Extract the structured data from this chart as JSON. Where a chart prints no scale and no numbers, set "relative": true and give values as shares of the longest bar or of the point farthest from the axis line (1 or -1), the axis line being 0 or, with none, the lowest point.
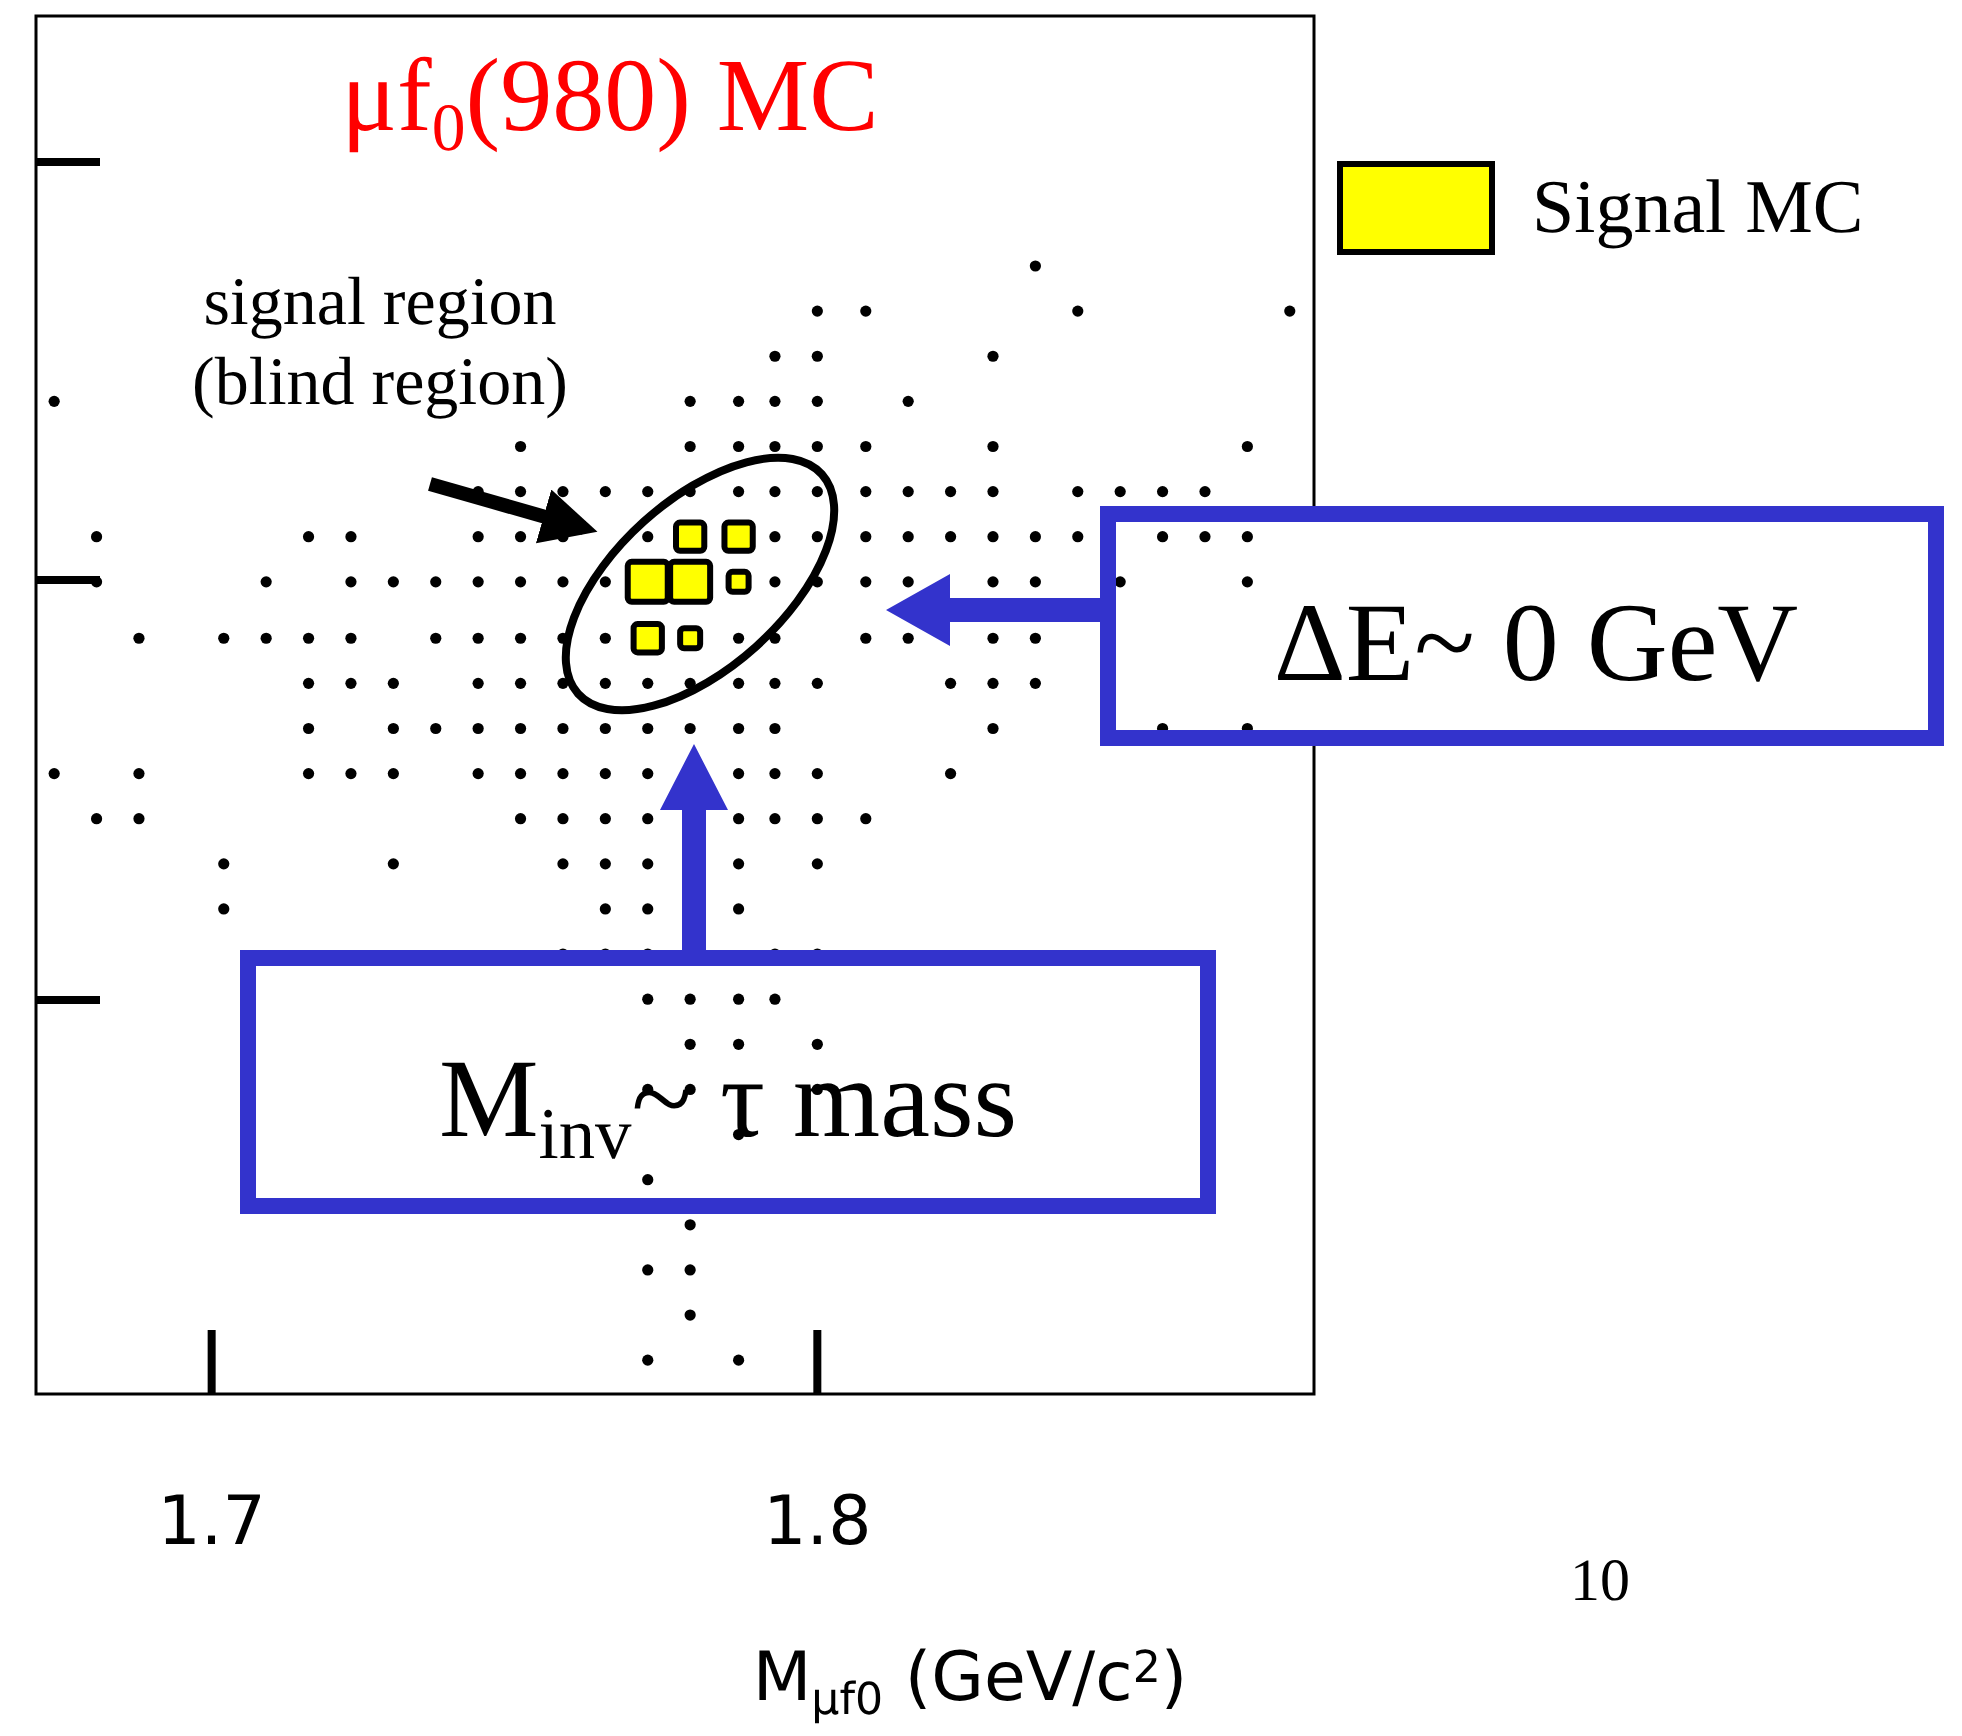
{
  "chart_data": {
    "type": "scatter",
    "title": "μf$_{0}$(980) MC",
    "xlabel": "M$_{μf0}$ (GeV/c$^{2}$)",
    "xlim": [
      1.671,
      1.882
    ],
    "xticks": [
      1.7,
      1.8
    ],
    "tick_labels": "x",
    "relative": true,
    "legend": "top right",
    "annotations": [
      "signal region\n(blind region)",
      "ΔE~ 0 GeV",
      "M$_{inv}$~ τ mass",
      "10"
    ],
    "series": [
      {
        "type": "scatter",
        "color": "#000000",
        "marker": "circle",
        "x": [
          1.836,
          1.8,
          1.808,
          1.843,
          1.878,
          1.793,
          1.8,
          1.829,
          1.674,
          1.779,
          1.787,
          1.793,
          1.8,
          1.815,
          1.751,
          1.779,
          1.787,
          1.793,
          1.8,
          1.808,
          1.829,
          1.871,
          1.744,
          1.751,
          1.758,
          1.765,
          1.772,
          1.779,
          1.787,
          1.793,
          1.8,
          1.808,
          1.815,
          1.822,
          1.829,
          1.843,
          1.85,
          1.857,
          1.864,
          1.681,
          1.716,
          1.723,
          1.744,
          1.751,
          1.758,
          1.772,
          1.793,
          1.8,
          1.808,
          1.815,
          1.822,
          1.829,
          1.836,
          1.843,
          1.857,
          1.864,
          1.871,
          1.681,
          1.709,
          1.723,
          1.73,
          1.737,
          1.744,
          1.751,
          1.758,
          1.765,
          1.793,
          1.8,
          1.808,
          1.815,
          1.829,
          1.836,
          1.85,
          1.871,
          1.688,
          1.702,
          1.709,
          1.716,
          1.723,
          1.737,
          1.744,
          1.751,
          1.758,
          1.765,
          1.787,
          1.793,
          1.808,
          1.815,
          1.829,
          1.836,
          1.716,
          1.723,
          1.73,
          1.744,
          1.751,
          1.758,
          1.765,
          1.772,
          1.779,
          1.787,
          1.793,
          1.8,
          1.822,
          1.829,
          1.836,
          1.716,
          1.73,
          1.737,
          1.744,
          1.751,
          1.758,
          1.765,
          1.772,
          1.779,
          1.787,
          1.793,
          1.829,
          1.857,
          1.871,
          1.674,
          1.688,
          1.716,
          1.723,
          1.73,
          1.744,
          1.751,
          1.758,
          1.765,
          1.772,
          1.787,
          1.793,
          1.8,
          1.822,
          1.681,
          1.688,
          1.751,
          1.758,
          1.765,
          1.772,
          1.787,
          1.793,
          1.8,
          1.808,
          1.702,
          1.73,
          1.758,
          1.765,
          1.772,
          1.787,
          1.8,
          1.702,
          1.765,
          1.772,
          1.787,
          1.758,
          1.765,
          1.772,
          1.793,
          1.8,
          1.772,
          1.779,
          1.787,
          1.793,
          1.779,
          1.787,
          1.8,
          1.772,
          1.779,
          1.8,
          1.787,
          1.772,
          1.779,
          1.772,
          1.779,
          1.779,
          1.772,
          1.787
        ],
        "values": [
          1.0,
          0.96,
          0.96,
          0.96,
          0.96,
          0.92,
          0.92,
          0.92,
          0.88,
          0.88,
          0.88,
          0.88,
          0.88,
          0.88,
          0.84,
          0.84,
          0.84,
          0.84,
          0.84,
          0.84,
          0.84,
          0.84,
          0.8,
          0.8,
          0.8,
          0.8,
          0.8,
          0.8,
          0.8,
          0.8,
          0.8,
          0.8,
          0.8,
          0.8,
          0.8,
          0.8,
          0.8,
          0.8,
          0.8,
          0.76,
          0.76,
          0.76,
          0.76,
          0.76,
          0.76,
          0.76,
          0.76,
          0.76,
          0.76,
          0.76,
          0.76,
          0.76,
          0.76,
          0.76,
          0.76,
          0.76,
          0.76,
          0.72,
          0.72,
          0.72,
          0.72,
          0.72,
          0.72,
          0.72,
          0.72,
          0.72,
          0.72,
          0.72,
          0.72,
          0.72,
          0.72,
          0.72,
          0.72,
          0.72,
          0.67,
          0.67,
          0.67,
          0.67,
          0.67,
          0.67,
          0.67,
          0.67,
          0.67,
          0.67,
          0.67,
          0.67,
          0.67,
          0.67,
          0.67,
          0.67,
          0.63,
          0.63,
          0.63,
          0.63,
          0.63,
          0.63,
          0.63,
          0.63,
          0.63,
          0.63,
          0.63,
          0.63,
          0.63,
          0.63,
          0.63,
          0.59,
          0.59,
          0.59,
          0.59,
          0.59,
          0.59,
          0.59,
          0.59,
          0.59,
          0.59,
          0.59,
          0.59,
          0.59,
          0.59,
          0.55,
          0.55,
          0.55,
          0.55,
          0.55,
          0.55,
          0.55,
          0.55,
          0.55,
          0.55,
          0.55,
          0.55,
          0.55,
          0.55,
          0.51,
          0.51,
          0.51,
          0.51,
          0.51,
          0.51,
          0.51,
          0.51,
          0.51,
          0.51,
          0.47,
          0.47,
          0.47,
          0.47,
          0.47,
          0.47,
          0.47,
          0.43,
          0.43,
          0.43,
          0.43,
          0.39,
          0.39,
          0.39,
          0.39,
          0.39,
          0.35,
          0.35,
          0.35,
          0.35,
          0.31,
          0.31,
          0.31,
          0.27,
          0.27,
          0.27,
          0.23,
          0.19,
          0.15,
          0.11,
          0.11,
          0.07,
          0.03,
          0.03
        ]
      },
      {
        "type": "bubble",
        "name": "Signal MC",
        "color": "#ffff00",
        "marker": "square",
        "x": [
          1.779,
          1.787,
          1.772,
          1.779,
          1.787,
          1.772,
          1.779
        ],
        "values": [
          0.76,
          0.76,
          0.72,
          0.72,
          0.72,
          0.67,
          0.67
        ],
        "sizes": [
          0.5,
          0.5,
          1,
          1,
          0.25,
          0.5,
          0.25
        ]
      }
    ]
  }
}
